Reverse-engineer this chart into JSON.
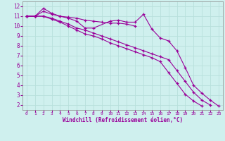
{
  "title": "",
  "xlabel": "Windchill (Refroidissement éolien,°C)",
  "background_color": "#cff0ee",
  "grid_color": "#b8e0dc",
  "line_color": "#990099",
  "xlim": [
    -0.5,
    23.5
  ],
  "ylim": [
    1.5,
    12.5
  ],
  "xticks": [
    0,
    1,
    2,
    3,
    4,
    5,
    6,
    7,
    8,
    9,
    10,
    11,
    12,
    13,
    14,
    15,
    16,
    17,
    18,
    19,
    20,
    21,
    22,
    23
  ],
  "yticks": [
    2,
    3,
    4,
    5,
    6,
    7,
    8,
    9,
    10,
    11,
    12
  ],
  "line1_y": [
    11.0,
    11.0,
    11.8,
    11.3,
    11.0,
    10.8,
    10.5,
    9.8,
    9.8,
    10.5,
    10.6,
    10.4,
    10.4,
    11.2,
    9.7,
    8.8,
    8.5,
    7.5,
    5.8,
    4.0,
    3.2,
    2.5,
    1.9
  ],
  "line1_x": [
    0,
    1,
    2,
    3,
    4,
    5,
    6,
    7,
    8,
    10,
    11,
    12,
    13,
    14,
    15,
    16,
    17,
    18,
    19,
    20,
    21,
    22,
    23
  ],
  "line2_y": [
    11.0,
    11.0,
    11.0,
    10.8,
    10.5,
    10.2,
    9.8,
    9.6,
    9.3,
    9.0,
    8.7,
    8.4,
    8.1,
    7.8,
    7.5,
    7.2,
    6.9,
    6.6,
    5.5,
    4.4,
    3.3,
    2.5,
    2.0
  ],
  "line2_x": [
    0,
    1,
    2,
    3,
    4,
    5,
    6,
    7,
    8,
    9,
    10,
    11,
    12,
    13,
    14,
    15,
    16,
    17,
    18,
    19,
    20,
    21,
    22
  ],
  "line3_y": [
    11.0,
    11.0,
    11.0,
    10.7,
    10.4,
    10.0,
    9.6,
    9.2,
    9.0,
    8.7,
    8.3,
    8.0,
    7.7,
    7.4,
    7.1,
    6.8,
    6.4,
    5.3,
    4.2,
    3.1,
    2.4,
    1.9
  ],
  "line3_x": [
    0,
    1,
    2,
    3,
    4,
    5,
    6,
    7,
    8,
    9,
    10,
    11,
    12,
    13,
    14,
    15,
    16,
    17,
    18,
    19,
    20,
    21
  ],
  "line4_y": [
    11.0,
    11.0,
    11.5,
    11.2,
    11.0,
    10.9,
    10.8,
    10.6,
    10.5,
    10.4,
    10.3,
    10.3,
    10.2,
    10.0
  ],
  "line4_x": [
    0,
    1,
    2,
    3,
    4,
    5,
    6,
    7,
    8,
    9,
    10,
    11,
    12,
    13
  ]
}
